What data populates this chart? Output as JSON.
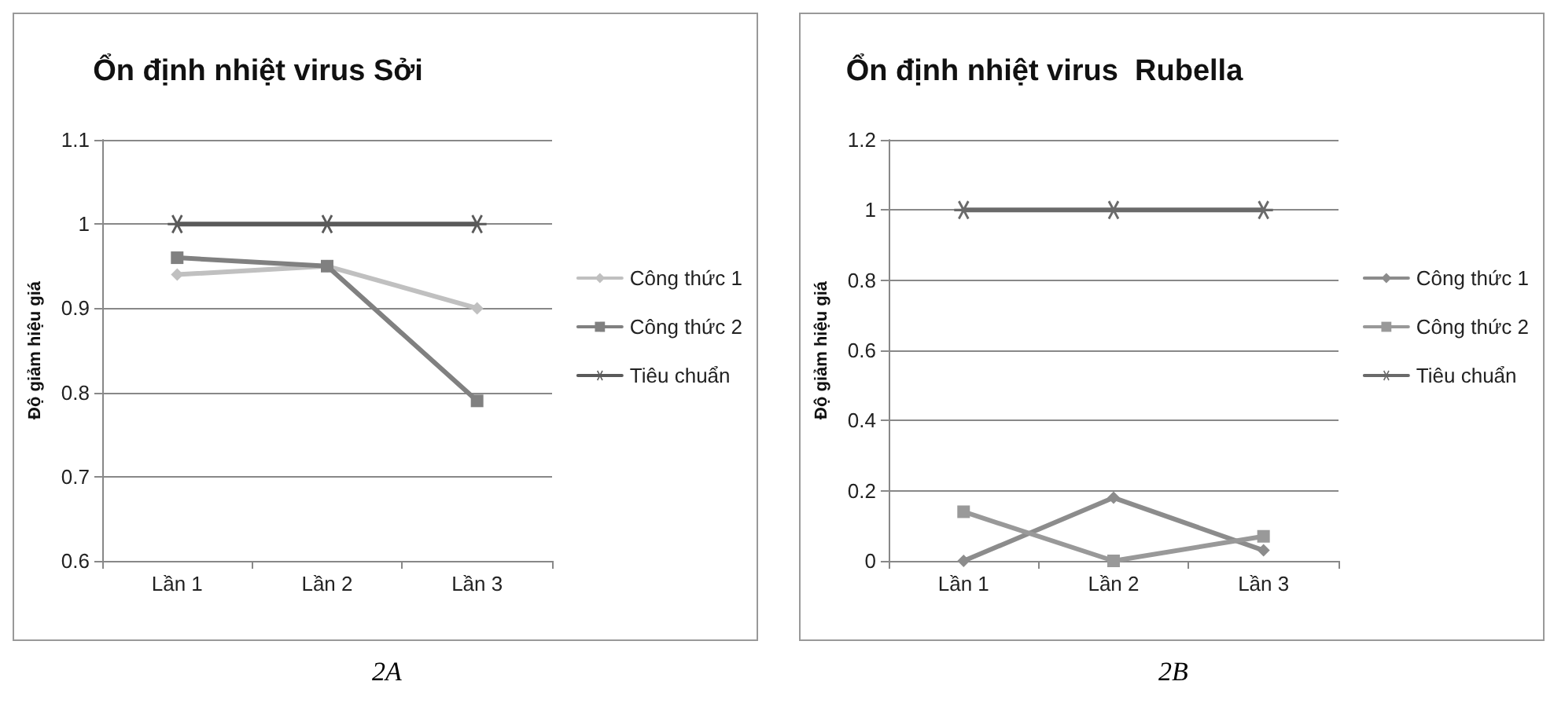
{
  "chart_data": [
    {
      "type": "line",
      "title": "Ổn định nhiệt virus Sởi",
      "ylabel": "Độ giảm hiệu giá",
      "categories": [
        "Lần 1",
        "Lần 2",
        "Lần 3"
      ],
      "series": [
        {
          "name": "Công thức 1",
          "color": "#c0c0c0",
          "marker": "diamond",
          "values": [
            0.94,
            0.95,
            0.9
          ]
        },
        {
          "name": "Công thức 2",
          "color": "#808080",
          "marker": "square",
          "values": [
            0.96,
            0.95,
            0.79
          ]
        },
        {
          "name": "Tiêu chuẩn",
          "color": "#5a5a5a",
          "marker": "cross",
          "values": [
            1,
            1,
            1
          ]
        }
      ],
      "ylim": [
        0.6,
        1.1
      ],
      "yticks": [
        0.6,
        0.7,
        0.8,
        0.9,
        1,
        1.1
      ],
      "grid": "y",
      "legend": "right",
      "annotations": [
        "2A"
      ]
    },
    {
      "type": "line",
      "title": "Ổn định nhiệt virus  Rubella",
      "ylabel": "Độ giảm hiệu giá",
      "categories": [
        "Lần 1",
        "Lần 2",
        "Lần 3"
      ],
      "series": [
        {
          "name": "Công thức 1",
          "color": "#8c8c8c",
          "marker": "diamond",
          "values": [
            0,
            0.18,
            0.03
          ]
        },
        {
          "name": "Công thức 2",
          "color": "#999999",
          "marker": "square",
          "values": [
            0.14,
            0,
            0.07
          ]
        },
        {
          "name": "Tiêu chuẩn",
          "color": "#6a6a6a",
          "marker": "cross",
          "values": [
            1,
            1,
            1
          ]
        }
      ],
      "ylim": [
        0,
        1.2
      ],
      "yticks": [
        0,
        0.2,
        0.4,
        0.6,
        0.8,
        1,
        1.2
      ],
      "grid": "y",
      "legend": "right",
      "annotations": [
        "2B"
      ]
    }
  ]
}
